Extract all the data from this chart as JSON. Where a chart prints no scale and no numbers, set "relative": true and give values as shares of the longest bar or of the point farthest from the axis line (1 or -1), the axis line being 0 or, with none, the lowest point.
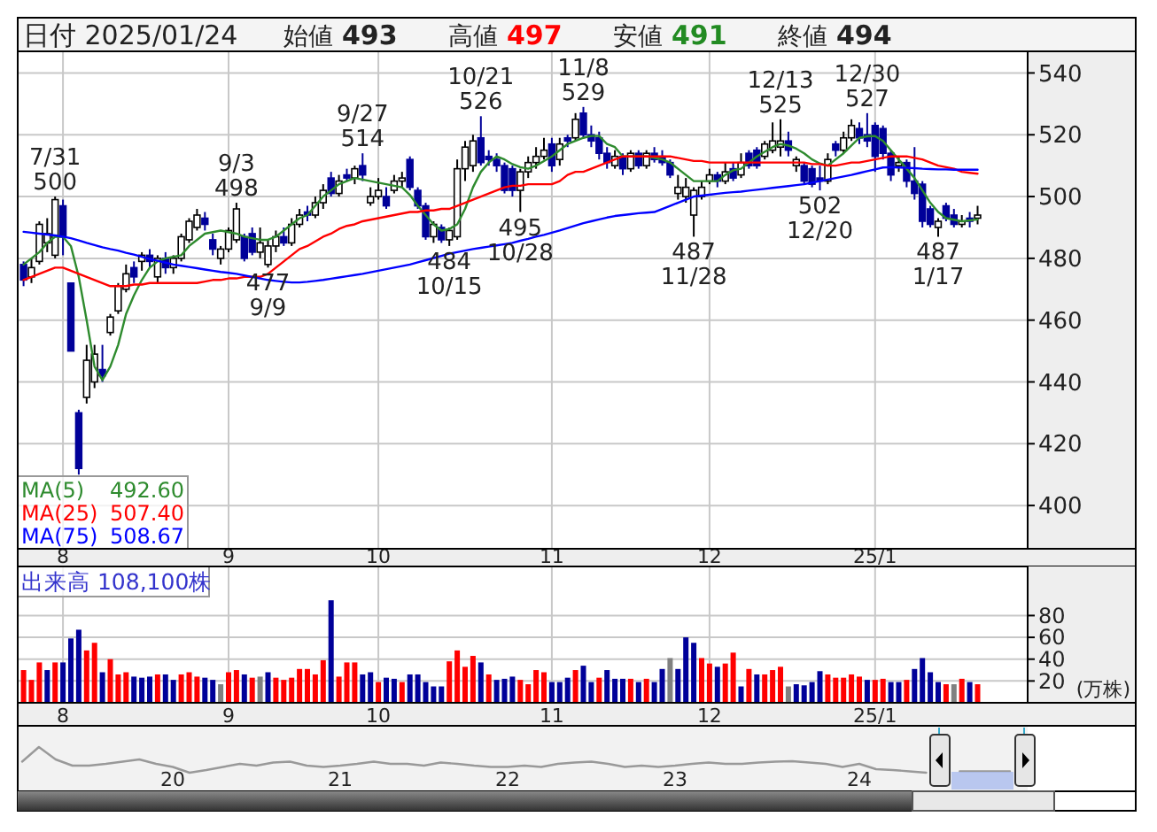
{
  "chart_data": [
    {
      "type": "candlestick",
      "title": "日付 2025/01/24",
      "annotations": [
        "始値 493",
        "高値 497",
        "安値 491",
        "終値 494",
        {
          "text": "7/31\n500",
          "y": 500
        },
        {
          "text": "9/3\n498",
          "y": 498
        },
        {
          "text": "477\n9/9",
          "y": 477
        },
        {
          "text": "9/27\n514",
          "y": 514
        },
        {
          "text": "484\n10/15",
          "y": 484
        },
        {
          "text": "10/21\n526",
          "y": 526
        },
        {
          "text": "495\n10/28",
          "y": 495
        },
        {
          "text": "11/8\n529",
          "y": 529
        },
        {
          "text": "487\n11/28",
          "y": 487
        },
        {
          "text": "12/13\n525",
          "y": 525
        },
        {
          "text": "502\n12/20",
          "y": 502
        },
        {
          "text": "12/30\n527",
          "y": 527
        },
        {
          "text": "487\n1/17",
          "y": 487
        }
      ],
      "categories": [
        null,
        null,
        null,
        null,
        null,
        "8",
        null,
        null,
        null,
        null,
        null,
        null,
        null,
        null,
        null,
        null,
        null,
        null,
        null,
        null,
        null,
        null,
        null,
        null,
        null,
        null,
        "9",
        null,
        null,
        null,
        null,
        null,
        null,
        null,
        null,
        null,
        null,
        null,
        null,
        null,
        null,
        null,
        null,
        null,
        null,
        "10",
        null,
        null,
        null,
        null,
        null,
        null,
        null,
        null,
        null,
        null,
        null,
        null,
        null,
        null,
        null,
        null,
        null,
        null,
        null,
        null,
        null,
        "11",
        null,
        null,
        null,
        null,
        null,
        null,
        null,
        null,
        null,
        null,
        null,
        null,
        null,
        null,
        null,
        null,
        null,
        null,
        null,
        "12",
        null,
        null,
        null,
        null,
        null,
        null,
        null,
        null,
        null,
        null,
        null,
        null,
        null,
        null,
        null,
        null,
        null,
        null,
        null,
        null,
        "25/1",
        null,
        null,
        null,
        null,
        null,
        null,
        null,
        null,
        null,
        null,
        null,
        null,
        null
      ],
      "ohlc": [
        [
          478,
          479,
          471,
          473
        ],
        [
          474,
          480,
          472,
          477
        ],
        [
          479,
          492,
          478,
          491
        ],
        [
          485,
          493,
          482,
          488
        ],
        [
          481,
          500,
          480,
          499
        ],
        [
          497,
          499,
          481,
          487
        ],
        [
          472,
          472,
          450,
          450
        ],
        [
          430,
          431,
          410,
          412
        ],
        [
          435,
          452,
          433,
          447
        ],
        [
          440,
          452,
          438,
          449
        ],
        [
          444,
          452,
          440,
          442
        ],
        [
          456,
          462,
          455,
          461
        ],
        [
          463,
          472,
          462,
          471
        ],
        [
          470,
          478,
          469,
          475
        ],
        [
          477,
          479,
          472,
          474
        ],
        [
          479,
          482,
          476,
          481
        ],
        [
          481,
          483,
          477,
          479
        ],
        [
          474,
          481,
          472,
          480
        ],
        [
          480,
          482,
          475,
          477
        ],
        [
          477,
          481,
          475,
          480
        ],
        [
          480,
          488,
          479,
          487
        ],
        [
          486,
          493,
          485,
          492
        ],
        [
          490,
          496,
          489,
          494
        ],
        [
          493,
          495,
          489,
          491
        ],
        [
          486,
          488,
          481,
          483
        ],
        [
          480,
          484,
          478,
          483
        ],
        [
          483,
          490,
          482,
          489
        ],
        [
          486,
          498,
          485,
          496
        ],
        [
          487,
          488,
          479,
          480
        ],
        [
          488,
          490,
          481,
          482
        ],
        [
          482,
          490,
          480,
          485
        ],
        [
          478,
          486,
          477,
          484
        ],
        [
          484,
          489,
          482,
          487
        ],
        [
          487,
          490,
          484,
          485
        ],
        [
          485,
          493,
          484,
          491
        ],
        [
          491,
          496,
          490,
          494
        ],
        [
          495,
          497,
          492,
          494
        ],
        [
          494,
          500,
          493,
          498
        ],
        [
          498,
          504,
          496,
          502
        ],
        [
          506,
          508,
          500,
          501
        ],
        [
          501,
          507,
          500,
          505
        ],
        [
          507,
          509,
          505,
          506
        ],
        [
          506,
          510,
          504,
          509
        ],
        [
          510,
          514,
          505,
          507
        ],
        [
          498,
          503,
          497,
          500
        ],
        [
          500,
          506,
          499,
          502
        ],
        [
          500,
          503,
          496,
          497
        ],
        [
          502,
          507,
          501,
          505
        ],
        [
          505,
          508,
          503,
          506
        ],
        [
          512,
          513,
          502,
          503
        ],
        [
          502,
          503,
          496,
          497
        ],
        [
          497,
          498,
          486,
          487
        ],
        [
          487,
          492,
          485,
          491
        ],
        [
          490,
          491,
          485,
          486
        ],
        [
          486,
          490,
          484,
          489
        ],
        [
          487,
          512,
          486,
          509
        ],
        [
          509,
          518,
          505,
          516
        ],
        [
          510,
          520,
          508,
          518
        ],
        [
          519,
          526,
          510,
          511
        ],
        [
          513,
          515,
          510,
          512
        ],
        [
          512,
          514,
          508,
          510
        ],
        [
          510,
          511,
          501,
          502
        ],
        [
          509,
          510,
          500,
          502
        ],
        [
          502,
          509,
          495,
          508
        ],
        [
          508,
          513,
          506,
          511
        ],
        [
          511,
          516,
          509,
          513
        ],
        [
          513,
          519,
          512,
          515
        ],
        [
          517,
          519,
          508,
          510
        ],
        [
          512,
          519,
          510,
          517
        ],
        [
          519,
          520,
          516,
          518
        ],
        [
          519,
          527,
          518,
          525
        ],
        [
          527,
          529,
          519,
          520
        ],
        [
          520,
          523,
          516,
          518
        ],
        [
          519,
          521,
          512,
          514
        ],
        [
          514,
          516,
          509,
          511
        ],
        [
          510,
          515,
          509,
          513
        ],
        [
          513,
          514,
          507,
          509
        ],
        [
          509,
          515,
          508,
          514
        ],
        [
          514,
          515,
          509,
          510
        ],
        [
          510,
          515,
          509,
          514
        ],
        [
          514,
          516,
          511,
          512
        ],
        [
          513,
          515,
          510,
          511
        ],
        [
          511,
          512,
          506,
          507
        ],
        [
          501,
          507,
          499,
          503
        ],
        [
          500,
          506,
          498,
          503
        ],
        [
          494,
          503,
          487,
          502
        ],
        [
          500,
          505,
          499,
          503
        ],
        [
          505,
          509,
          504,
          507
        ],
        [
          507,
          508,
          503,
          505
        ],
        [
          505,
          511,
          504,
          508
        ],
        [
          509,
          511,
          505,
          506
        ],
        [
          507,
          514,
          506,
          511
        ],
        [
          514,
          515,
          509,
          510
        ],
        [
          515,
          516,
          509,
          510
        ],
        [
          513,
          518,
          512,
          517
        ],
        [
          515,
          524,
          514,
          518
        ],
        [
          516,
          525,
          513,
          518
        ],
        [
          518,
          521,
          513,
          515
        ],
        [
          510,
          513,
          508,
          512
        ],
        [
          510,
          511,
          504,
          505
        ],
        [
          509,
          510,
          503,
          504
        ],
        [
          506,
          510,
          502,
          505
        ],
        [
          505,
          514,
          504,
          512
        ],
        [
          517,
          518,
          513,
          515
        ],
        [
          515,
          521,
          514,
          519
        ],
        [
          519,
          525,
          518,
          523
        ],
        [
          522,
          524,
          517,
          519
        ],
        [
          520,
          527,
          516,
          518
        ],
        [
          523,
          524,
          508,
          513
        ],
        [
          522,
          523,
          512,
          514
        ],
        [
          514,
          515,
          505,
          507
        ],
        [
          510,
          513,
          508,
          511
        ],
        [
          511,
          512,
          503,
          505
        ],
        [
          505,
          516,
          499,
          501
        ],
        [
          504,
          505,
          490,
          492
        ],
        [
          496,
          497,
          490,
          491
        ],
        [
          490,
          493,
          487,
          492
        ],
        [
          497,
          498,
          492,
          493
        ],
        [
          494,
          496,
          490,
          491
        ],
        [
          491,
          494,
          490,
          492
        ],
        [
          493,
          495,
          490,
          492
        ],
        [
          493,
          497,
          491,
          494
        ]
      ],
      "series": [
        {
          "name": "MA(5) 492.60",
          "type": "line",
          "color": "#2e8b2e",
          "values": [
            478,
            480,
            482,
            485,
            487,
            487,
            484,
            474,
            460,
            445,
            440.6,
            445,
            452,
            462,
            468,
            473,
            477,
            479,
            480,
            480.5,
            481,
            484,
            486,
            488,
            488.5,
            489,
            488.5,
            488,
            487,
            486.5,
            486,
            486,
            487,
            489,
            491,
            493,
            494,
            497,
            500,
            502,
            504,
            505,
            506,
            505.5,
            505,
            504.5,
            504,
            503.5,
            503,
            500.5,
            497,
            494,
            491,
            489,
            489.5,
            491,
            496,
            503,
            508,
            511,
            513,
            512,
            510.5,
            509.5,
            509,
            510,
            511.5,
            513,
            515,
            517,
            518,
            519,
            519.6,
            519.6,
            517,
            516,
            513,
            513,
            513,
            513,
            512.5,
            512,
            511,
            509,
            507,
            505,
            505,
            505,
            505,
            507,
            508.5,
            509,
            511,
            513,
            514.5,
            516,
            517,
            516.5,
            515.5,
            514,
            512,
            510.7,
            510,
            512,
            514,
            516.5,
            519,
            519.5,
            519.6,
            518,
            515,
            512,
            509,
            506,
            502,
            498,
            495,
            493,
            492.5,
            492,
            492.3,
            492.6
          ]
        },
        {
          "name": "MA(25) 507.40",
          "type": "line",
          "color": "#ff0000",
          "values": [
            473,
            474,
            475,
            476,
            477,
            477,
            476,
            475,
            474,
            473,
            472,
            471,
            471,
            471,
            471.5,
            471.5,
            472,
            472,
            472,
            472,
            472,
            472,
            472,
            472.5,
            473,
            473,
            473.5,
            473.5,
            474,
            474,
            474,
            475,
            477,
            479,
            481,
            483,
            484,
            485.5,
            487,
            488,
            489.5,
            490.5,
            491,
            492,
            492.5,
            493,
            493.5,
            494,
            494.5,
            495,
            495,
            495.5,
            495.5,
            496,
            496,
            497,
            498,
            499,
            500,
            501,
            502,
            503,
            503.5,
            503.5,
            504,
            504,
            504,
            504,
            505,
            507,
            508,
            508,
            509,
            510,
            511,
            512,
            513,
            513,
            513,
            513,
            513,
            513,
            513,
            512.5,
            512,
            511.5,
            511.5,
            511,
            511,
            511,
            511,
            511,
            511,
            511,
            511,
            511,
            511,
            511,
            511,
            511,
            510.5,
            510.5,
            510,
            510,
            510.5,
            511,
            511,
            511.5,
            512,
            512.5,
            513,
            513,
            513,
            512.5,
            512,
            511,
            510,
            509.5,
            509,
            508,
            507.7,
            507.4
          ]
        },
        {
          "name": "MA(75) 508.67",
          "type": "line",
          "color": "#0000ff",
          "values": [
            488.6,
            488.3,
            488,
            487.7,
            487.4,
            487,
            486.5,
            485.8,
            485,
            484.3,
            483.6,
            483,
            482.5,
            481.8,
            481.2,
            480.5,
            479.8,
            479.2,
            478.6,
            478,
            477.6,
            477.2,
            476.8,
            476.4,
            476,
            475.6,
            475.3,
            475,
            474.5,
            474,
            473.5,
            473,
            472.7,
            472.4,
            472.2,
            472.2,
            472.4,
            472.7,
            473,
            473.4,
            473.8,
            474.2,
            474.6,
            475,
            475.5,
            476,
            476.5,
            477,
            477.5,
            478,
            478.7,
            479.4,
            480.1,
            480.8,
            481.5,
            482,
            482.5,
            483,
            483.4,
            483.8,
            484.2,
            484.6,
            485,
            485.7,
            486.3,
            487,
            487.6,
            488.3,
            489,
            489.8,
            490.6,
            491.4,
            492,
            492.6,
            493.2,
            493.7,
            494,
            494.3,
            494.6,
            494.8,
            495,
            496,
            497,
            498,
            499,
            500,
            500.3,
            500.6,
            500.9,
            501.2,
            501.4,
            501.6,
            501.9,
            502.2,
            502.5,
            502.8,
            503.1,
            503.4,
            503.7,
            504,
            504.5,
            505,
            505.5,
            506,
            506.5,
            507,
            507.6,
            508.2,
            508.8,
            509.4,
            509.5,
            509.4,
            509.3,
            509.2,
            509,
            508.9,
            508.8,
            508.8,
            508.7,
            508.7,
            508.7,
            508.67
          ]
        }
      ],
      "ylim": [
        386,
        547
      ],
      "yticks": [
        400,
        420,
        440,
        460,
        480,
        500,
        520,
        540
      ],
      "grid": true,
      "legend": "bottom left"
    },
    {
      "type": "bar",
      "title": "出来高 108,100株",
      "ylabel": "(万株)",
      "categories": [
        null,
        null,
        null,
        null,
        null,
        "8",
        null,
        null,
        null,
        null,
        null,
        null,
        null,
        null,
        null,
        null,
        null,
        null,
        null,
        null,
        null,
        null,
        null,
        null,
        null,
        null,
        "9",
        null,
        null,
        null,
        null,
        null,
        null,
        null,
        null,
        null,
        null,
        null,
        null,
        null,
        null,
        null,
        null,
        null,
        null,
        "10",
        null,
        null,
        null,
        null,
        null,
        null,
        null,
        null,
        null,
        null,
        null,
        null,
        null,
        null,
        null,
        null,
        null,
        null,
        null,
        null,
        null,
        "11",
        null,
        null,
        null,
        null,
        null,
        null,
        null,
        null,
        null,
        null,
        null,
        null,
        null,
        null,
        null,
        null,
        null,
        null,
        null,
        "12",
        null,
        null,
        null,
        null,
        null,
        null,
        null,
        null,
        null,
        null,
        null,
        null,
        null,
        null,
        null,
        null,
        null,
        null,
        null,
        null,
        "25/1",
        null,
        null,
        null,
        null,
        null,
        null,
        null,
        null,
        null,
        null,
        null,
        null,
        null
      ],
      "values": [
        30,
        21,
        37,
        30,
        37,
        37,
        59,
        67,
        48,
        55,
        28,
        40,
        26,
        28,
        24,
        23,
        24,
        26,
        26,
        21,
        26,
        28,
        24,
        23,
        21,
        17,
        28,
        30,
        26,
        23,
        24,
        28,
        23,
        21,
        23,
        31,
        31,
        26,
        39,
        94,
        24,
        37,
        37,
        26,
        28,
        19,
        23,
        22,
        19,
        26,
        26,
        19,
        15,
        15,
        38,
        48,
        33,
        43,
        37,
        26,
        21,
        22,
        24,
        21,
        17,
        30,
        28,
        19,
        19,
        23,
        30,
        34,
        19,
        23,
        30,
        22,
        22,
        22,
        19,
        22,
        19,
        31,
        41,
        31,
        60,
        55,
        41,
        36,
        33,
        36,
        46,
        15,
        31,
        26,
        26,
        30,
        33,
        15,
        17,
        16,
        19,
        29,
        26,
        23,
        23,
        26,
        24,
        21,
        21,
        22,
        19,
        19,
        21,
        31,
        41,
        28,
        19,
        17,
        17,
        22,
        19,
        17
      ],
      "colors": [
        "#ff0000",
        "#ff0000",
        "#ff0000",
        "#000099",
        "#ff0000",
        "#000099",
        "#000099",
        "#000099",
        "#ff0000",
        "#ff0000",
        "#000099",
        "#ff0000",
        "#ff0000",
        "#ff0000",
        "#000099",
        "#000099",
        "#000099",
        "#ff0000",
        "#000099",
        "#000099",
        "#ff0000",
        "#ff0000",
        "#ff0000",
        "#000099",
        "#000099",
        "#808080",
        "#ff0000",
        "#ff0000",
        "#000099",
        "#ff0000",
        "#808080",
        "#000099",
        "#ff0000",
        "#ff0000",
        "#ff0000",
        "#ff0000",
        "#ff0000",
        "#ff0000",
        "#ff0000",
        "#000099",
        "#ff0000",
        "#ff0000",
        "#ff0000",
        "#000099",
        "#000099",
        "#ff0000",
        "#000099",
        "#000099",
        "#ff0000",
        "#000099",
        "#000099",
        "#000099",
        "#000099",
        "#000099",
        "#ff0000",
        "#ff0000",
        "#ff0000",
        "#ff0000",
        "#000099",
        "#ff0000",
        "#000099",
        "#000099",
        "#000099",
        "#ff0000",
        "#ff0000",
        "#ff0000",
        "#ff0000",
        "#000099",
        "#000099",
        "#000099",
        "#ff0000",
        "#000099",
        "#000099",
        "#ff0000",
        "#000099",
        "#000099",
        "#000099",
        "#ff0000",
        "#000099",
        "#ff0000",
        "#000099",
        "#000099",
        "#808080",
        "#000099",
        "#000099",
        "#000099",
        "#ff0000",
        "#ff0000",
        "#000099",
        "#ff0000",
        "#ff0000",
        "#000099",
        "#ff0000",
        "#000099",
        "#ff0000",
        "#ff0000",
        "#ff0000",
        "#808080",
        "#000099",
        "#000099",
        "#000099",
        "#000099",
        "#ff0000",
        "#ff0000",
        "#ff0000",
        "#ff0000",
        "#ff0000",
        "#000099",
        "#ff0000",
        "#ff0000",
        "#000099",
        "#000099",
        "#ff0000",
        "#000099",
        "#000099",
        "#000099",
        "#000099",
        "#ff0000",
        "#808080",
        "#ff0000",
        "#000099",
        "#ff0000"
      ],
      "ylim": [
        0,
        125
      ],
      "yticks": [
        20,
        40,
        60,
        80
      ],
      "grid": true
    },
    {
      "type": "line",
      "relative": true,
      "tick_labels": "x",
      "categories": [
        null,
        null,
        null,
        null,
        null,
        null,
        null,
        null,
        null,
        "20",
        null,
        null,
        null,
        null,
        null,
        null,
        null,
        null,
        null,
        "21",
        null,
        null,
        null,
        null,
        null,
        null,
        null,
        null,
        null,
        "22",
        null,
        null,
        null,
        null,
        null,
        null,
        null,
        null,
        null,
        "23",
        null,
        null,
        null,
        null,
        null,
        null,
        null,
        null,
        null,
        null,
        "24",
        null,
        null,
        null,
        null,
        null,
        null,
        null,
        null,
        null
      ],
      "series": [
        {
          "color": "#999999",
          "values": [
            0.67,
            1.0,
            0.72,
            0.58,
            0.58,
            0.62,
            0.67,
            0.72,
            0.62,
            0.55,
            0.42,
            0.48,
            0.55,
            0.62,
            0.58,
            0.65,
            0.67,
            0.58,
            0.55,
            0.58,
            0.62,
            0.67,
            0.62,
            0.62,
            0.58,
            0.65,
            0.62,
            0.58,
            0.55,
            0.55,
            0.58,
            0.55,
            0.62,
            0.65,
            0.67,
            0.62,
            0.55,
            0.58,
            0.55,
            0.58,
            0.62,
            0.65,
            0.62,
            0.62,
            0.65,
            0.67,
            0.68,
            0.65,
            0.62,
            0.55,
            0.62,
            0.5,
            0.48,
            0.45,
            0.42,
            null,
            0.45,
            0.45,
            0.45,
            0.45
          ]
        }
      ]
    }
  ]
}
